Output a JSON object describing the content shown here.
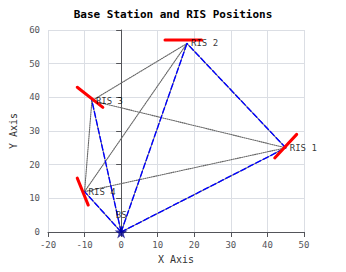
{
  "chart_data": {
    "type": "scatter",
    "title": "Base Station and RIS Positions",
    "xlabel": "X Axis",
    "ylabel": "Y Axis",
    "xlim": [
      -20,
      50
    ],
    "ylim": [
      0,
      60
    ],
    "xticks": [
      -20,
      -10,
      0,
      10,
      20,
      30,
      40,
      50
    ],
    "yticks": [
      0,
      10,
      20,
      30,
      40,
      50,
      60
    ],
    "grid": true,
    "series": [
      {
        "type": "line",
        "line_style": "dotted",
        "color": "#666666",
        "x": [
          0,
          45,
          null,
          0,
          18,
          null,
          0,
          -8,
          null,
          0,
          -10,
          null,
          45,
          18,
          null,
          45,
          -8,
          null,
          45,
          -10,
          null,
          18,
          -8,
          null,
          18,
          -10,
          null,
          -8,
          -10
        ],
        "values": [
          0,
          25,
          null,
          0,
          56,
          null,
          0,
          39,
          null,
          0,
          12,
          null,
          25,
          56,
          null,
          25,
          39,
          null,
          25,
          12,
          null,
          56,
          39,
          null,
          56,
          12,
          null,
          39,
          12
        ]
      },
      {
        "type": "line",
        "line_style": "dashed",
        "color": "#0000FF",
        "x": [
          0,
          45,
          null,
          0,
          18,
          null,
          0,
          -8,
          null,
          0,
          -10,
          null,
          45,
          18
        ],
        "values": [
          0,
          25,
          null,
          0,
          56,
          null,
          0,
          39,
          null,
          0,
          12,
          null,
          25,
          56
        ]
      },
      {
        "type": "line",
        "line_style": "solid",
        "color": "#FF0000",
        "x": [
          42,
          48,
          null,
          12,
          22,
          null,
          -12,
          -5,
          null,
          -12,
          -9
        ],
        "values": [
          22,
          29,
          null,
          57,
          57,
          null,
          43,
          37,
          null,
          16,
          8
        ]
      },
      {
        "type": "scatter",
        "marker": "star",
        "color": "#00008B",
        "x": [
          0
        ],
        "values": [
          0
        ],
        "labels": [
          "BS"
        ]
      },
      {
        "type": "scatter",
        "marker": "none",
        "x": [
          45,
          18,
          -8,
          -10
        ],
        "values": [
          25,
          56,
          39,
          12
        ],
        "labels": [
          "RIS 1",
          "RIS 2",
          "RIS 3",
          "RIS 4"
        ]
      }
    ]
  }
}
